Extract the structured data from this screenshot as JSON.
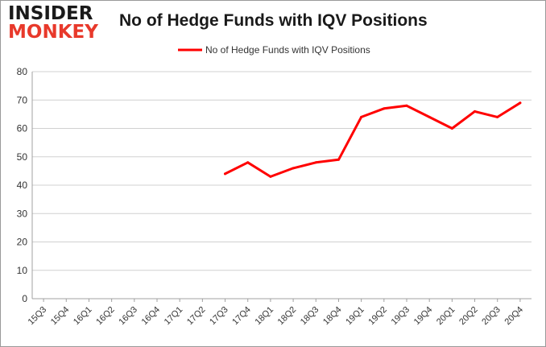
{
  "brand": {
    "line1": "INSIDER",
    "line2": "MONKEY",
    "accent_color": "#e8392b"
  },
  "chart_data": {
    "type": "line",
    "title": "No of Hedge Funds with IQV Positions",
    "xlabel": "",
    "ylabel": "",
    "categories": [
      "15Q3",
      "15Q4",
      "16Q1",
      "16Q2",
      "16Q3",
      "16Q4",
      "17Q1",
      "17Q2",
      "17Q3",
      "17Q4",
      "18Q1",
      "18Q2",
      "18Q3",
      "18Q4",
      "19Q1",
      "19Q2",
      "19Q3",
      "19Q4",
      "20Q1",
      "20Q2",
      "20Q3",
      "20Q4"
    ],
    "series": [
      {
        "name": "No of Hedge Funds with IQV Positions",
        "color": "#ff0000",
        "values": [
          null,
          null,
          null,
          null,
          null,
          null,
          null,
          null,
          44,
          48,
          43,
          46,
          48,
          49,
          64,
          67,
          68,
          64,
          60,
          66,
          64,
          69
        ]
      }
    ],
    "ylim": [
      0,
      80
    ],
    "yticks": [
      0,
      10,
      20,
      30,
      40,
      50,
      60,
      70,
      80
    ],
    "grid": true,
    "legend_position": "top-center"
  }
}
